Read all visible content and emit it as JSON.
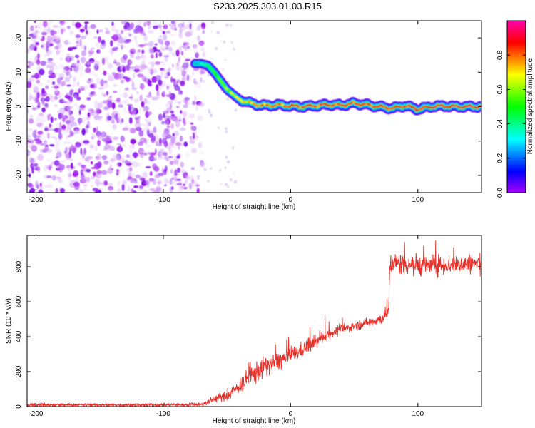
{
  "title": "S233.2025.303.01.03.R15",
  "colors": {
    "snr_line": "#e8312a",
    "ridge_high": "#e0183c",
    "noise_purple": "#7a1de0"
  },
  "chart_data": [
    {
      "type": "heatmap",
      "name": "spectrogram",
      "xlabel": "Height of straight line (km)",
      "ylabel": "Frequency (Hz)",
      "xlim": [
        -207,
        150
      ],
      "ylim": [
        -25,
        25
      ],
      "x_ticks": [
        -200,
        -100,
        0,
        100
      ],
      "y_ticks": [
        -20,
        -10,
        0,
        10,
        20
      ],
      "x_tick_labels": [
        "-200",
        "-100",
        "0",
        "100"
      ],
      "y_tick_labels": [
        "-20",
        "-10",
        "0",
        "10",
        "20"
      ],
      "noise_region_x": [
        -207,
        -68
      ],
      "ridge": {
        "x": [
          -75,
          -70,
          -65,
          -60,
          -55,
          -50,
          -45,
          -40,
          -35,
          -30,
          -20,
          -10,
          0,
          10,
          20,
          30,
          40,
          50,
          60,
          70,
          80,
          90,
          100,
          110,
          120,
          130,
          140,
          150
        ],
        "freq": [
          12.5,
          12.5,
          12.0,
          10.0,
          7.5,
          5.0,
          3.5,
          2.0,
          1.5,
          0.8,
          0.3,
          0.5,
          0.2,
          0.0,
          0.3,
          0.6,
          0.4,
          1.0,
          0.5,
          0.0,
          -0.5,
          0.3,
          -0.8,
          0.0,
          0.2,
          0.0,
          0.0,
          0.0
        ],
        "amplitude": [
          0.25,
          0.35,
          0.45,
          0.55,
          0.6,
          0.65,
          0.7,
          0.75,
          0.75,
          0.8,
          0.85,
          0.85,
          0.9,
          0.9,
          0.9,
          0.9,
          0.9,
          0.9,
          0.9,
          0.9,
          0.92,
          0.92,
          0.92,
          0.95,
          0.95,
          0.95,
          0.95,
          0.95
        ]
      }
    },
    {
      "type": "colorbar",
      "name": "amplitude-colorbar",
      "label": "Normalized spectral amplitude",
      "range": [
        0,
        1
      ],
      "ticks": [
        0.0,
        0.2,
        0.4,
        0.6,
        0.8
      ],
      "tick_labels": [
        "0.0",
        "0.2",
        "0.4",
        "0.6",
        "0.8"
      ]
    },
    {
      "type": "line",
      "name": "snr-series",
      "xlabel": "Height of straight line (km)",
      "ylabel": "SNR (10 * v/v)",
      "xlim": [
        -207,
        150
      ],
      "ylim": [
        0,
        980
      ],
      "x_ticks": [
        -200,
        -100,
        0,
        100
      ],
      "y_ticks": [
        0,
        200,
        400,
        600,
        800
      ],
      "x_tick_labels": [
        "-200",
        "-100",
        "0",
        "100"
      ],
      "y_tick_labels": [
        "0",
        "200",
        "400",
        "600",
        "800"
      ],
      "envelope": {
        "x": [
          -207,
          -150,
          -100,
          -70,
          -65,
          -60,
          -50,
          -40,
          -30,
          -20,
          -10,
          0,
          10,
          20,
          30,
          40,
          50,
          60,
          70,
          75,
          77,
          78,
          85,
          100,
          120,
          150
        ],
        "mean": [
          10,
          10,
          10,
          12,
          25,
          45,
          60,
          120,
          180,
          230,
          260,
          290,
          330,
          370,
          420,
          440,
          460,
          480,
          500,
          520,
          540,
          820,
          820,
          810,
          810,
          820
        ],
        "noise": [
          10,
          8,
          8,
          10,
          15,
          20,
          25,
          40,
          60,
          50,
          50,
          40,
          40,
          35,
          30,
          25,
          25,
          25,
          30,
          30,
          30,
          50,
          60,
          60,
          50,
          50
        ]
      }
    }
  ]
}
